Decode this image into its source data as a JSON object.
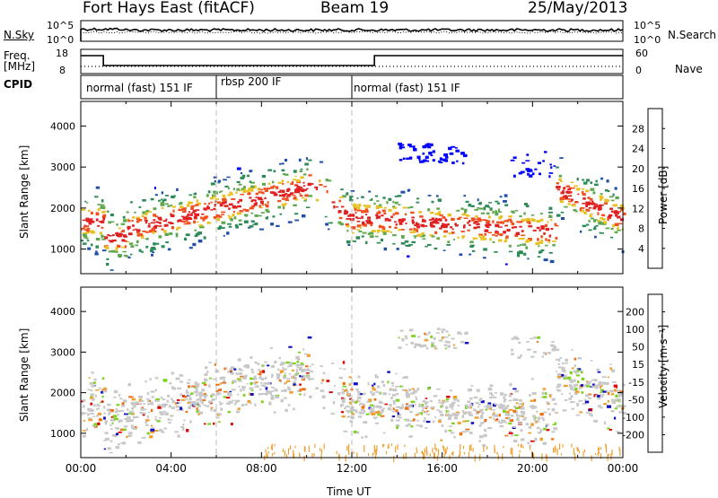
{
  "header": {
    "radar_title": "Fort Hays East (fitACF)",
    "beam": "Beam 19",
    "date": "25/May/2013"
  },
  "side_labels": {
    "nsky": "N.Sky",
    "freq": "Freq.",
    "freq_unit": "[MHz]",
    "cpid": "CPID",
    "nsearch": "N.Search",
    "nave": "Nave"
  },
  "noise_axis": {
    "top": "10^5",
    "bottom": "10^0"
  },
  "freq_axis": {
    "top": "18",
    "bottom": "8"
  },
  "nave_axis": {
    "top": "60",
    "bottom": "0"
  },
  "cpid_segments": [
    {
      "label": "normal (fast) 151 IF",
      "start_hour": 0,
      "end_hour": 6
    },
    {
      "label": "rbsp 200 IF",
      "start_hour": 6,
      "end_hour": 12
    },
    {
      "label": "normal (fast) 151 IF",
      "start_hour": 12,
      "end_hour": 24
    }
  ],
  "chart_data": [
    {
      "type": "heatmap",
      "title": "",
      "ylabel": "Slant Range [km]",
      "yticks": [
        "1000",
        "2000",
        "3000",
        "4000"
      ],
      "ylim": [
        400,
        4600
      ],
      "xlim": [
        0,
        24
      ],
      "colorbar_label": "Power [dB]",
      "colorbar_ticks": [
        "4",
        "8",
        "12",
        "16",
        "20",
        "24",
        "28"
      ],
      "colorbar_colors": [
        "#0000ff",
        "#1f4fa8",
        "#2e8b57",
        "#5fa84f",
        "#e8c020",
        "#f08020",
        "#f05020",
        "#e02020"
      ]
    },
    {
      "type": "heatmap",
      "title": "",
      "ylabel": "Slant Range [km]",
      "yticks": [
        "1000",
        "2000",
        "3000",
        "4000"
      ],
      "ylim": [
        400,
        4600
      ],
      "xlim": [
        0,
        24
      ],
      "colorbar_label": "Velocity [m s⁻¹]",
      "colorbar_ticks": [
        "200",
        "100",
        "50",
        "15",
        "-15",
        "-50",
        "-100",
        "-200"
      ],
      "colorbar_colors": [
        "#1010c0",
        "#1f6f9f",
        "#2e8b57",
        "#7ed321",
        "#c8c8c8",
        "#f0a030",
        "#f07010",
        "#f03010",
        "#e00000"
      ]
    }
  ],
  "x_axis": {
    "ticks": [
      "00:00",
      "04:00",
      "08:00",
      "12:00",
      "16:00",
      "20:00",
      "00:00"
    ],
    "label": "Time UT"
  },
  "colors": {
    "power_ridge": "#e04010",
    "power_mid": "#2e8b57",
    "power_low": "#1f4fa8",
    "velocity_grey": "#c8c8c8"
  }
}
